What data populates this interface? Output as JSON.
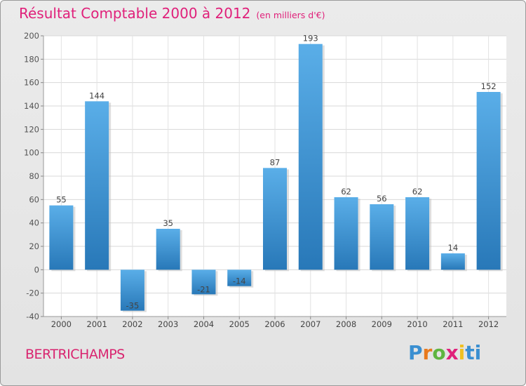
{
  "title": "Résultat Comptable 2000 à 2012",
  "subtitle": "(en milliers d'€)",
  "commune": "BERTRICHAMPS",
  "logo_text": "Proxiti",
  "logo_letters": [
    "P",
    "r",
    "o",
    "x",
    "i",
    "ti"
  ],
  "colors": {
    "bar_light": "#5aaee8",
    "bar_dark": "#2878b8",
    "title": "#e0207a"
  },
  "chart_data": {
    "type": "bar",
    "title": "Résultat Comptable 2000 à 2012",
    "ylabel": "en milliers d'€",
    "xlabel": "",
    "categories": [
      "2000",
      "2001",
      "2002",
      "2003",
      "2004",
      "2005",
      "2006",
      "2007",
      "2008",
      "2009",
      "2010",
      "2011",
      "2012"
    ],
    "values": [
      55,
      144,
      -35,
      35,
      -21,
      -14,
      87,
      193,
      62,
      56,
      62,
      14,
      152
    ],
    "ylim": [
      -40,
      200
    ],
    "yticks": [
      -40,
      -20,
      0,
      20,
      40,
      60,
      80,
      100,
      120,
      140,
      160,
      180,
      200
    ],
    "grid": true
  }
}
